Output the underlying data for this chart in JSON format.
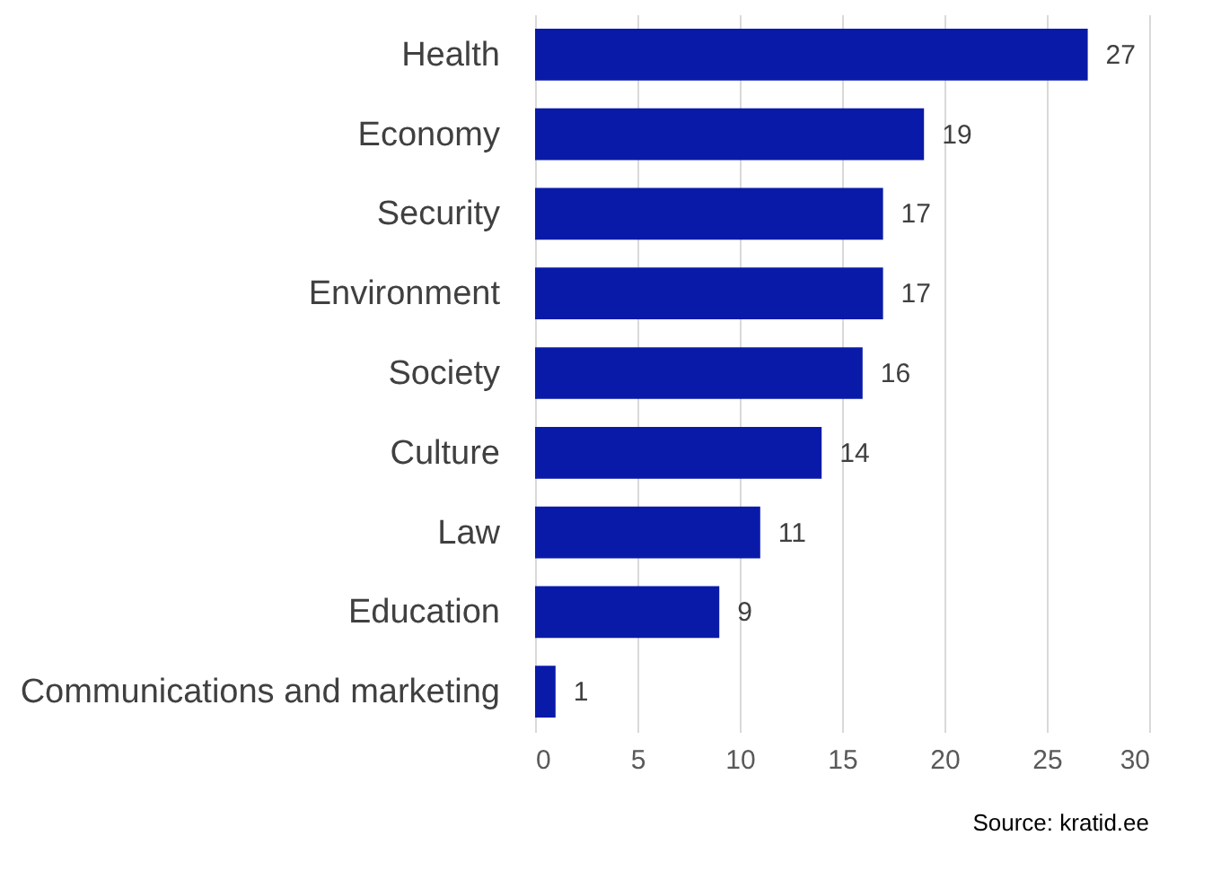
{
  "chart_data": {
    "type": "bar",
    "orientation": "horizontal",
    "categories": [
      "Health",
      "Economy",
      "Security",
      "Environment",
      "Society",
      "Culture",
      "Law",
      "Education",
      "Communications and marketing"
    ],
    "values": [
      27,
      19,
      17,
      17,
      16,
      14,
      11,
      9,
      1
    ],
    "color": "#0a1aa8",
    "xlim": [
      0,
      30
    ],
    "xticks": [
      0,
      5,
      10,
      15,
      20,
      25,
      30
    ],
    "grid": "x",
    "data_labels": true,
    "annotations": [
      "Source: kratid.ee"
    ]
  }
}
